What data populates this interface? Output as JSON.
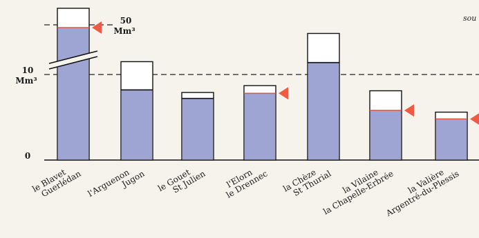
{
  "chart_data": {
    "type": "bar",
    "source_note": "sou",
    "y_ticks": [
      {
        "value": 0,
        "label": "0",
        "unit": ""
      },
      {
        "value": 10,
        "label": "10",
        "unit": "Mm³"
      },
      {
        "value": 50,
        "label": "50",
        "unit": "Mm³"
      }
    ],
    "axis_break": {
      "between": [
        10,
        50
      ]
    },
    "dashed_reference_lines": [
      10,
      50
    ],
    "categories": [
      {
        "label_lines": [
          "le Blavet",
          "Guerlédan"
        ],
        "capacity": 51,
        "fill": 50.5,
        "red_line": true,
        "marker": true,
        "broken_axis": true
      },
      {
        "label_lines": [
          "l'Arguenon",
          "Jugon"
        ],
        "capacity": 11.5,
        "fill": 8.2,
        "red_line": false,
        "marker": false,
        "broken_axis": false
      },
      {
        "label_lines": [
          "le Gouet",
          "St Julien"
        ],
        "capacity": 7.9,
        "fill": 7.2,
        "red_line": false,
        "marker": false,
        "broken_axis": false
      },
      {
        "label_lines": [
          "l'Elorn",
          "le Drennec"
        ],
        "capacity": 8.7,
        "fill": 7.8,
        "red_line": true,
        "marker": true,
        "broken_axis": false
      },
      {
        "label_lines": [
          "la Chèze",
          "St Thurial"
        ],
        "capacity": 14.8,
        "fill": 11.4,
        "red_line": false,
        "marker": false,
        "broken_axis": false
      },
      {
        "label_lines": [
          "la Vilaine",
          "la Chapelle-Erbrée"
        ],
        "capacity": 8.1,
        "fill": 5.8,
        "red_line": true,
        "marker": true,
        "broken_axis": false
      },
      {
        "label_lines": [
          "la Valière",
          "Argentré-du-Plessis"
        ],
        "capacity": 5.6,
        "fill": 4.8,
        "red_line": true,
        "marker": true,
        "broken_axis": false
      }
    ],
    "colors": {
      "fill": "#9ea5d2",
      "empty": "#ffffff",
      "outline": "#111111",
      "red_line": "#e0544a",
      "marker": "#ef5a44",
      "dashed": "#222222"
    }
  }
}
